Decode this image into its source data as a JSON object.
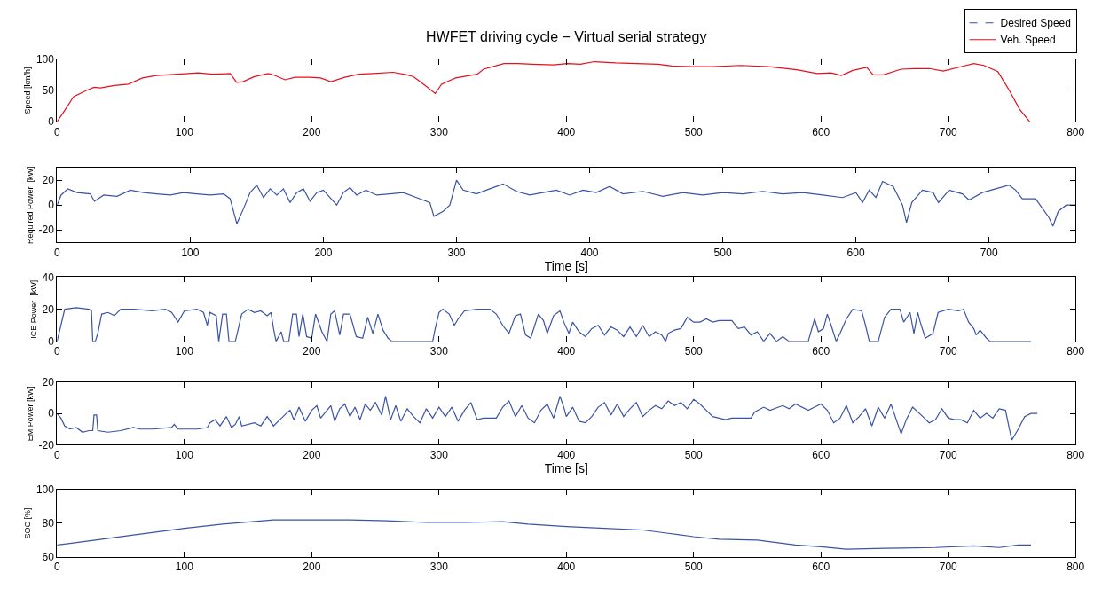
{
  "chart_data": [
    {
      "type": "line",
      "title": "HWFET driving cycle − Virtual serial strategy",
      "ylabel": "Speed [km/h]",
      "xlim": [
        0,
        800
      ],
      "xticks": [
        0,
        100,
        200,
        300,
        400,
        500,
        600,
        700,
        800
      ],
      "ylim": [
        0,
        100
      ],
      "yticks": [
        0,
        50,
        100
      ],
      "legend": "top right",
      "x": [
        0,
        5,
        13,
        23,
        29,
        34,
        45,
        56,
        67,
        78,
        95,
        111,
        122,
        136,
        141,
        146,
        155,
        166,
        171,
        179,
        187,
        198,
        207,
        215,
        226,
        237,
        248,
        264,
        275,
        280,
        289,
        297,
        302,
        313,
        330,
        335,
        351,
        362,
        373,
        390,
        401,
        411,
        422,
        439,
        455,
        472,
        483,
        499,
        515,
        537,
        559,
        581,
        597,
        608,
        616,
        625,
        636,
        641,
        649,
        663,
        674,
        685,
        696,
        712,
        720,
        728,
        739,
        748,
        756,
        764
      ],
      "series": [
        {
          "name": "Desired Speed",
          "color": "#3a53a4",
          "line_style": "dashed",
          "values": [
            null,
            null,
            null,
            null,
            null,
            null,
            null,
            null,
            null,
            null,
            null,
            null,
            null,
            null,
            null,
            null,
            null,
            null,
            null,
            null,
            null,
            null,
            null,
            null,
            null,
            null,
            null,
            null,
            null,
            null,
            null,
            null,
            null,
            null,
            null,
            null,
            null,
            null,
            null,
            null,
            null,
            null,
            null,
            null,
            null,
            null,
            null,
            null,
            null,
            null,
            null,
            null,
            null,
            null,
            null,
            null,
            null,
            null,
            null,
            null,
            null,
            null,
            null,
            null,
            null,
            null,
            null,
            null,
            null,
            null
          ]
        },
        {
          "name": "Veh. Speed",
          "color": "#e3101e",
          "line_style": "solid",
          "values": [
            0,
            15,
            40,
            50,
            55,
            54,
            58,
            60,
            70,
            74,
            76,
            78,
            76,
            77,
            63,
            64,
            72,
            77,
            74,
            67,
            71,
            71,
            70,
            64,
            71,
            76,
            77,
            79,
            75,
            72,
            58,
            45,
            60,
            70,
            76,
            84,
            93,
            93,
            92,
            91,
            93,
            92,
            96,
            94,
            93,
            92,
            89,
            88,
            88,
            90,
            88,
            83,
            77,
            78,
            74,
            82,
            87,
            75,
            75,
            84,
            85,
            85,
            81,
            89,
            93,
            90,
            80,
            50,
            20,
            0
          ]
        }
      ]
    },
    {
      "type": "line",
      "ylabel": "Required Power  [kW]",
      "xlabel": "Time [s]",
      "xlim": [
        0,
        765
      ],
      "xticks": [
        0,
        100,
        200,
        300,
        400,
        500,
        600,
        700
      ],
      "ylim": [
        -30,
        30
      ],
      "yticks": [
        -20,
        0,
        20
      ],
      "x": [
        0,
        3,
        8,
        15,
        25,
        28,
        35,
        45,
        55,
        65,
        75,
        85,
        95,
        105,
        115,
        125,
        130,
        135,
        140,
        145,
        150,
        155,
        160,
        165,
        170,
        175,
        180,
        185,
        190,
        195,
        200,
        210,
        215,
        220,
        225,
        232,
        240,
        250,
        260,
        270,
        280,
        283,
        290,
        295,
        300,
        305,
        315,
        325,
        335,
        345,
        355,
        365,
        375,
        385,
        395,
        405,
        415,
        425,
        440,
        455,
        470,
        485,
        500,
        515,
        530,
        545,
        560,
        575,
        590,
        600,
        605,
        610,
        615,
        620,
        628,
        635,
        638,
        642,
        650,
        658,
        662,
        670,
        680,
        685,
        695,
        705,
        715,
        720,
        725,
        735,
        745,
        748,
        752,
        758,
        765
      ],
      "series": [
        {
          "color": "#3a53a4",
          "values": [
            0,
            8,
            13,
            10,
            9,
            3,
            8,
            7,
            12,
            10,
            9,
            8,
            10,
            9,
            8,
            9,
            5,
            -15,
            -3,
            10,
            16,
            6,
            13,
            8,
            13,
            2,
            10,
            13,
            3,
            10,
            12,
            0,
            10,
            14,
            8,
            12,
            8,
            9,
            10,
            6,
            2,
            -9,
            -5,
            0,
            20,
            12,
            9,
            13,
            17,
            11,
            8,
            10,
            12,
            8,
            12,
            10,
            15,
            9,
            11,
            7,
            10,
            8,
            10,
            9,
            11,
            9,
            10,
            8,
            6,
            10,
            2,
            12,
            6,
            19,
            15,
            0,
            -14,
            2,
            12,
            10,
            2,
            12,
            9,
            4,
            10,
            13,
            16,
            12,
            5,
            5,
            -10,
            -17,
            -5,
            0,
            0
          ]
        }
      ]
    },
    {
      "type": "line",
      "ylabel": "ICE Power  [kW]",
      "xlim": [
        0,
        800
      ],
      "xticks": [
        0,
        100,
        200,
        300,
        400,
        500,
        600,
        700,
        800
      ],
      "ylim": [
        0,
        40
      ],
      "yticks": [
        0,
        20,
        40
      ],
      "x": [
        0,
        3,
        6,
        15,
        25,
        27,
        28,
        30,
        32,
        35,
        40,
        45,
        50,
        60,
        75,
        85,
        90,
        95,
        100,
        110,
        115,
        118,
        120,
        125,
        127,
        130,
        133,
        135,
        140,
        145,
        150,
        155,
        160,
        165,
        168,
        170,
        172,
        176,
        178,
        182,
        185,
        188,
        190,
        193,
        196,
        200,
        203,
        208,
        212,
        215,
        218,
        222,
        225,
        230,
        235,
        240,
        244,
        248,
        252,
        256,
        260,
        263,
        280,
        295,
        297,
        300,
        303,
        308,
        312,
        315,
        320,
        330,
        340,
        345,
        350,
        355,
        360,
        364,
        368,
        372,
        378,
        382,
        385,
        390,
        395,
        398,
        402,
        405,
        410,
        415,
        420,
        425,
        430,
        435,
        440,
        445,
        450,
        455,
        460,
        465,
        470,
        475,
        478,
        480,
        485,
        490,
        495,
        500,
        505,
        510,
        515,
        520,
        530,
        535,
        540,
        545,
        550,
        555,
        560,
        565,
        570,
        575,
        580,
        590,
        595,
        598,
        602,
        605,
        608,
        612,
        615,
        620,
        625,
        632,
        635,
        638,
        645,
        650,
        655,
        662,
        665,
        670,
        673,
        676,
        678,
        682,
        688,
        692,
        700,
        708,
        712,
        716,
        720,
        722,
        725,
        730,
        733,
        765
      ],
      "series": [
        {
          "color": "#3a53a4",
          "values": [
            0,
            10,
            20,
            21,
            20,
            19,
            0,
            0,
            5,
            17,
            18,
            16,
            20,
            20,
            19,
            20,
            18,
            12,
            19,
            20,
            18,
            10,
            18,
            16,
            0,
            17,
            17,
            0,
            0,
            17,
            20,
            18,
            19,
            16,
            18,
            8,
            0,
            6,
            0,
            0,
            17,
            17,
            3,
            17,
            3,
            2,
            17,
            6,
            0,
            17,
            19,
            4,
            17,
            17,
            3,
            2,
            15,
            5,
            17,
            7,
            2,
            0,
            0,
            0,
            8,
            18,
            20,
            17,
            10,
            14,
            19,
            20,
            20,
            17,
            10,
            5,
            16,
            17,
            4,
            2,
            17,
            13,
            5,
            16,
            19,
            12,
            5,
            12,
            6,
            3,
            8,
            10,
            4,
            9,
            7,
            3,
            9,
            3,
            10,
            3,
            6,
            4,
            0,
            5,
            7,
            8,
            15,
            12,
            12,
            14,
            12,
            13,
            13,
            8,
            9,
            4,
            6,
            0,
            5,
            0,
            3,
            0,
            0,
            0,
            14,
            6,
            8,
            17,
            10,
            0,
            5,
            14,
            20,
            19,
            10,
            0,
            0,
            15,
            20,
            20,
            12,
            18,
            5,
            18,
            12,
            2,
            5,
            18,
            20,
            19,
            20,
            12,
            8,
            4,
            7,
            2,
            0,
            0
          ]
        }
      ]
    },
    {
      "type": "line",
      "ylabel": "EM Power [kW]",
      "xlabel": "Time [s]",
      "xlim": [
        0,
        800
      ],
      "xticks": [
        0,
        100,
        200,
        300,
        400,
        500,
        600,
        700,
        800
      ],
      "ylim": [
        -20,
        20
      ],
      "yticks": [
        -20,
        0,
        20
      ],
      "x": [
        0,
        3,
        6,
        10,
        15,
        20,
        25,
        28,
        29,
        31,
        32,
        40,
        50,
        60,
        65,
        75,
        90,
        92,
        95,
        110,
        118,
        120,
        124,
        128,
        133,
        137,
        140,
        143,
        145,
        155,
        160,
        165,
        170,
        175,
        180,
        183,
        186,
        190,
        195,
        200,
        204,
        207,
        210,
        215,
        218,
        222,
        226,
        230,
        234,
        238,
        242,
        246,
        250,
        255,
        258,
        262,
        266,
        270,
        275,
        280,
        285,
        290,
        295,
        300,
        305,
        310,
        315,
        320,
        325,
        330,
        335,
        345,
        350,
        355,
        360,
        365,
        370,
        375,
        380,
        385,
        390,
        395,
        398,
        400,
        405,
        410,
        415,
        420,
        425,
        430,
        435,
        440,
        445,
        450,
        455,
        460,
        465,
        470,
        475,
        480,
        485,
        490,
        495,
        500,
        505,
        510,
        515,
        520,
        525,
        530,
        545,
        548,
        555,
        560,
        570,
        575,
        580,
        590,
        595,
        600,
        605,
        610,
        615,
        620,
        625,
        630,
        635,
        640,
        645,
        650,
        655,
        660,
        663,
        667,
        672,
        680,
        685,
        690,
        695,
        700,
        705,
        710,
        715,
        720,
        725,
        730,
        735,
        740,
        745,
        748,
        750,
        755,
        760,
        765,
        770
      ],
      "series": [
        {
          "color": "#3a53a4",
          "values": [
            0,
            -3,
            -8,
            -10,
            -9,
            -12,
            -11,
            -11,
            -1,
            -1,
            -11,
            -12,
            -11,
            -9,
            -10,
            -10,
            -9,
            -7,
            -10,
            -10,
            -9,
            -6,
            -4,
            -8,
            -2,
            -9,
            -7,
            -2,
            -8,
            -6,
            -8,
            -2,
            -8,
            -4,
            0,
            2,
            -4,
            4,
            -5,
            2,
            5,
            -3,
            0,
            5,
            -5,
            3,
            6,
            -2,
            4,
            -4,
            6,
            2,
            7,
            -1,
            11,
            -4,
            5,
            -5,
            3,
            -2,
            -6,
            3,
            -3,
            4,
            -2,
            4,
            -5,
            2,
            7,
            -4,
            -3,
            -3,
            4,
            8,
            -2,
            5,
            -3,
            -6,
            2,
            6,
            -3,
            11,
            4,
            -2,
            4,
            -5,
            -6,
            -2,
            4,
            7,
            -1,
            6,
            -2,
            3,
            7,
            -2,
            2,
            5,
            3,
            8,
            5,
            7,
            3,
            9,
            6,
            2,
            -2,
            -3,
            -4,
            -3,
            -3,
            1,
            4,
            2,
            5,
            3,
            6,
            2,
            4,
            6,
            2,
            -6,
            -3,
            5,
            -6,
            -2,
            3,
            -8,
            4,
            -3,
            6,
            -6,
            -13,
            -4,
            4,
            -2,
            -6,
            -4,
            3,
            -3,
            -4,
            -4,
            -6,
            2,
            -3,
            0,
            -3,
            3,
            2,
            -10,
            -17,
            -10,
            -2,
            0,
            0
          ]
        }
      ]
    },
    {
      "type": "line",
      "ylabel": "SOC [%]",
      "xlim": [
        0,
        800
      ],
      "xticks": [
        0,
        100,
        200,
        300,
        400,
        500,
        600,
        700,
        800
      ],
      "ylim": [
        60,
        100
      ],
      "yticks": [
        60,
        80,
        100
      ],
      "x": [
        0,
        10,
        30,
        60,
        100,
        130,
        170,
        200,
        230,
        260,
        290,
        320,
        350,
        370,
        400,
        430,
        460,
        480,
        500,
        520,
        550,
        580,
        600,
        620,
        650,
        690,
        720,
        740,
        755,
        765
      ],
      "series": [
        {
          "color": "#3a53a4",
          "values": [
            67,
            68,
            70,
            73,
            77,
            79.5,
            82,
            82,
            82,
            81.5,
            80.5,
            80.5,
            81,
            79.5,
            78,
            77,
            76,
            74,
            72,
            70.5,
            70,
            67,
            66,
            64.5,
            65,
            65.5,
            66.5,
            65.5,
            67,
            67
          ]
        }
      ]
    }
  ]
}
